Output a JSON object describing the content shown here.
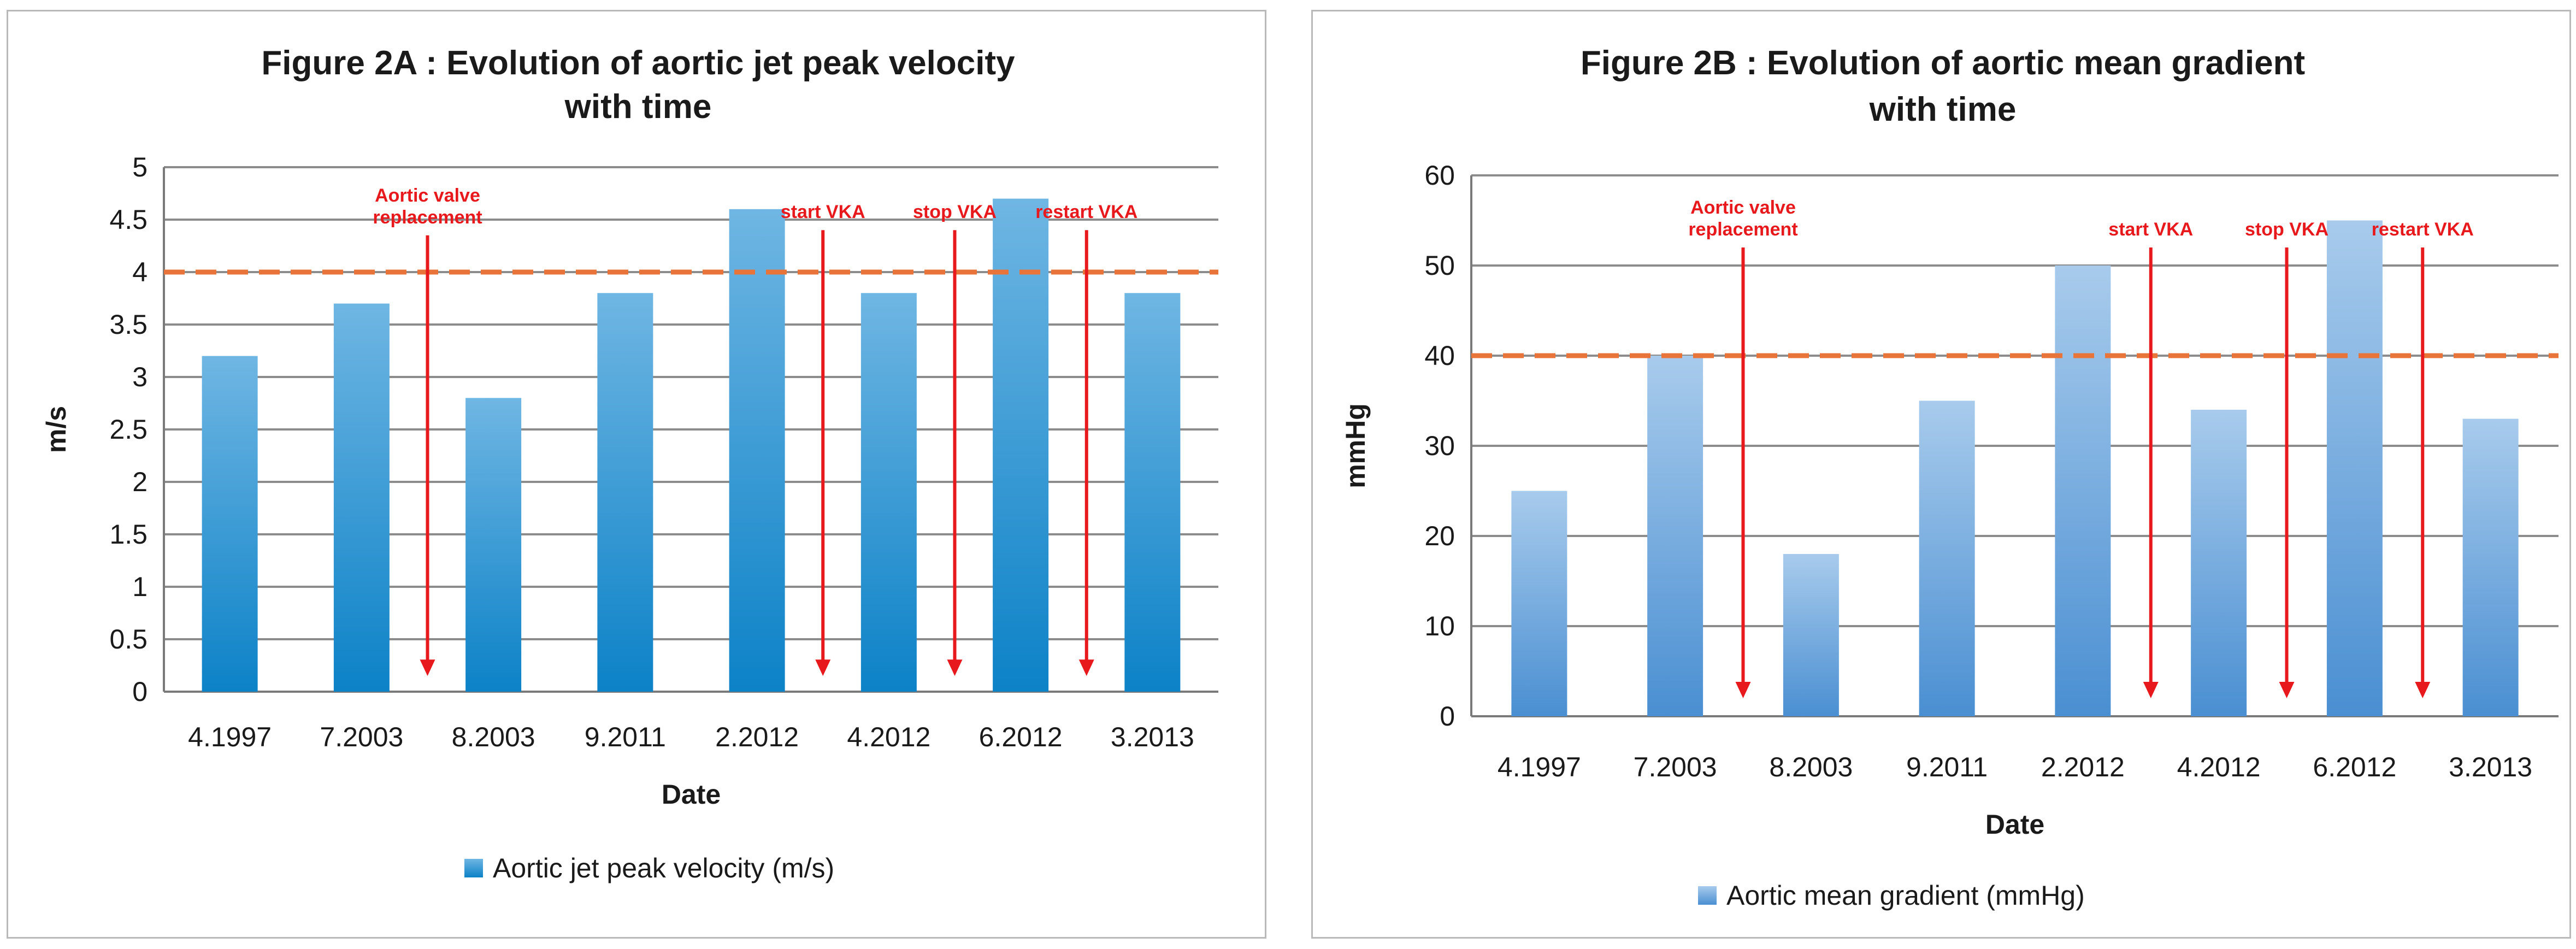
{
  "chart_data": [
    {
      "type": "bar",
      "title": "Figure 2A : Evolution of aortic jet peak velocity",
      "subtitle": "with time",
      "xlabel": "Date",
      "ylabel": "m/s",
      "categories": [
        "4.1997",
        "7.2003",
        "8.2003",
        "9.2011",
        "2.2012",
        "4.2012",
        "6.2012",
        "3.2013"
      ],
      "series": [
        {
          "name": "Aortic jet peak velocity (m/s)",
          "values": [
            3.2,
            3.7,
            2.8,
            3.8,
            4.6,
            3.8,
            4.7,
            3.8
          ]
        }
      ],
      "ylim": [
        0,
        5
      ],
      "yticks": [
        "0",
        "0.5",
        "1",
        "1.5",
        "2",
        "2.5",
        "3",
        "3.5",
        "4",
        "4.5",
        "5"
      ],
      "ytick_values": [
        0,
        0.5,
        1,
        1.5,
        2,
        2.5,
        3,
        3.5,
        4,
        4.5,
        5
      ],
      "threshold": 4,
      "grid": true,
      "legend": "bottom",
      "color_top": "#6fb6e3",
      "color_bottom": "#0c82c7",
      "annotations": [
        {
          "lines": [
            "Aortic valve",
            "replacement"
          ],
          "between": [
            1,
            2
          ],
          "arrow_from": 4.35,
          "arrow_to": 0.15
        },
        {
          "lines": [
            "start VKA"
          ],
          "between": [
            4,
            5
          ],
          "arrow_from": 4.4,
          "arrow_to": 0.15
        },
        {
          "lines": [
            "stop VKA"
          ],
          "between": [
            5,
            6
          ],
          "arrow_from": 4.4,
          "arrow_to": 0.15
        },
        {
          "lines": [
            "restart VKA"
          ],
          "between": [
            6,
            7
          ],
          "arrow_from": 4.4,
          "arrow_to": 0.15
        }
      ]
    },
    {
      "type": "bar",
      "title": "Figure 2B : Evolution of aortic mean gradient",
      "subtitle": "with time",
      "xlabel": "Date",
      "ylabel": "mmHg",
      "categories": [
        "4.1997",
        "7.2003",
        "8.2003",
        "9.2011",
        "2.2012",
        "4.2012",
        "6.2012",
        "3.2013"
      ],
      "series": [
        {
          "name": "Aortic mean gradient (mmHg)",
          "values": [
            25,
            40,
            18,
            35,
            50,
            34,
            55,
            33
          ]
        }
      ],
      "ylim": [
        0,
        60
      ],
      "yticks": [
        "0",
        "10",
        "20",
        "30",
        "40",
        "50",
        "60"
      ],
      "ytick_values": [
        0,
        10,
        20,
        30,
        40,
        50,
        60
      ],
      "threshold": 40,
      "grid": true,
      "legend": "bottom",
      "color_top": "#a8cbec",
      "color_bottom": "#4a8fd2",
      "annotations": [
        {
          "lines": [
            "Aortic valve",
            "replacement"
          ],
          "between": [
            1,
            2
          ],
          "arrow_from": 52,
          "arrow_to": 2
        },
        {
          "lines": [
            "start VKA"
          ],
          "between": [
            4,
            5
          ],
          "arrow_from": 52,
          "arrow_to": 2
        },
        {
          "lines": [
            "stop VKA"
          ],
          "between": [
            5,
            6
          ],
          "arrow_from": 52,
          "arrow_to": 2
        },
        {
          "lines": [
            "restart VKA"
          ],
          "between": [
            6,
            7
          ],
          "arrow_from": 52,
          "arrow_to": 2
        }
      ]
    }
  ]
}
